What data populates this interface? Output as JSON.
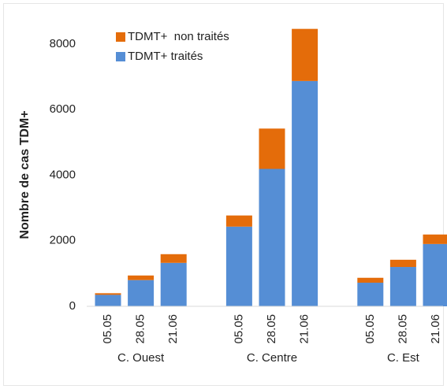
{
  "chart_data": {
    "type": "stacked_bar",
    "y_label": "Nombre de cas TDM+",
    "categories": [
      "05.05",
      "28.05",
      "21.06",
      "05.05",
      "28.05",
      "21.06",
      "05.05",
      "28.05",
      "21.06"
    ],
    "groups": [
      "C. Ouest",
      "C. Centre",
      "C. Est"
    ],
    "series": [
      {
        "name": "TDMT+ traités",
        "color": "#558ed5",
        "values": [
          350,
          800,
          1325,
          2430,
          4190,
          6870,
          720,
          1200,
          1900
        ]
      },
      {
        "name": "TDMT+  non traités",
        "color": "#e46c0a",
        "values": [
          50,
          140,
          265,
          340,
          1230,
          1590,
          150,
          220,
          290
        ]
      }
    ],
    "ylim": [
      0,
      8500
    ],
    "yticks": [
      0,
      2000,
      4000,
      6000,
      8000
    ],
    "grid": false,
    "legend": "top-left"
  }
}
